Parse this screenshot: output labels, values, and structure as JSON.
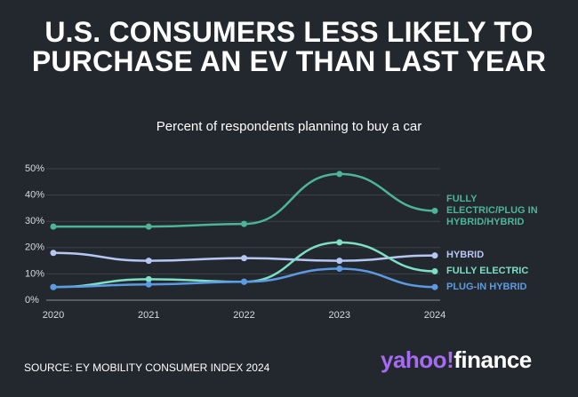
{
  "chart_data": {
    "type": "line",
    "title": "U.S. CONSUMERS LESS LIKELY TO PURCHASE AN EV THAN LAST YEAR",
    "subtitle": "Percent of respondents planning to buy a car",
    "categories": [
      "2020",
      "2021",
      "2022",
      "2023",
      "2024"
    ],
    "series": [
      {
        "name": "FULLY ELECTRIC/PLUG IN HYBRID/HYBRID",
        "color": "#4cb597",
        "values": [
          28,
          28,
          29,
          48,
          34
        ]
      },
      {
        "name": "HYBRID",
        "color": "#b7c7f4",
        "values": [
          18,
          15,
          16,
          15,
          17
        ]
      },
      {
        "name": "FULLY ELECTRIC",
        "color": "#7ddfc3",
        "values": [
          5,
          8,
          7,
          22,
          11
        ]
      },
      {
        "name": "PLUG-IN HYBRID",
        "color": "#5c9be3",
        "values": [
          5,
          6,
          7,
          12,
          5
        ]
      }
    ],
    "ylim": [
      0,
      50
    ],
    "yticks": [
      {
        "value": 0,
        "label": "0%"
      },
      {
        "value": 10,
        "label": "10%"
      },
      {
        "value": 20,
        "label": "20%"
      },
      {
        "value": 30,
        "label": "30%"
      },
      {
        "value": 40,
        "label": "40%"
      },
      {
        "value": 50,
        "label": "50%"
      }
    ],
    "grid": true,
    "source": "SOURCE: EY MOBILITY CONSUMER INDEX 2024",
    "brand": [
      "yahoo!",
      "finance"
    ]
  }
}
